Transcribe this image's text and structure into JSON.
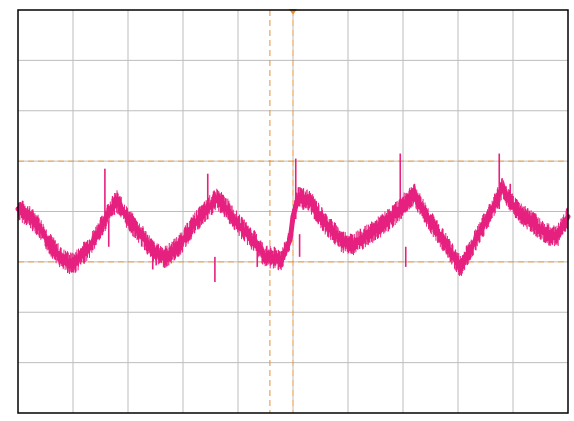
{
  "chart_data": {
    "type": "line",
    "grid": true,
    "grid_divisions": {
      "x": 10,
      "y": 8
    },
    "xlim": [
      0,
      10
    ],
    "ylim": [
      -4,
      4
    ],
    "colors": {
      "trace": "#E6207E",
      "cursor": "#E89030",
      "grid": "#BDBDBD",
      "frame": "#000000",
      "background": "#FFFFFF"
    },
    "cursors": {
      "horizontal": [
        1.0,
        -1.0
      ],
      "vertical": [
        4.58,
        5.0
      ]
    },
    "series": [
      {
        "x": [
          0,
          0.15,
          0.35,
          0.55,
          0.8,
          1.0,
          1.3,
          1.55,
          1.65,
          1.8,
          2.0,
          2.3,
          2.5,
          2.7,
          2.95,
          3.2,
          3.45,
          3.5,
          3.62,
          3.8,
          4.0,
          4.3,
          4.5,
          4.8,
          4.95,
          5.0,
          5.1,
          5.3,
          5.6,
          5.9,
          6.1,
          6.4,
          6.7,
          6.95,
          7.1,
          7.2,
          7.3,
          7.5,
          7.75,
          7.95,
          8.05,
          8.2,
          8.5,
          8.65,
          8.75,
          8.82,
          8.9,
          9.1,
          9.4,
          9.6,
          9.8,
          10.0
        ],
        "y": [
          0.05,
          -0.05,
          -0.25,
          -0.6,
          -0.95,
          -1.05,
          -0.7,
          -0.25,
          0.0,
          0.2,
          -0.15,
          -0.55,
          -0.85,
          -0.9,
          -0.65,
          -0.25,
          0.05,
          0.12,
          0.25,
          0.05,
          -0.25,
          -0.6,
          -0.9,
          -0.95,
          -0.55,
          -0.1,
          0.3,
          0.2,
          -0.25,
          -0.6,
          -0.65,
          -0.45,
          -0.2,
          0.05,
          0.25,
          0.35,
          0.15,
          -0.2,
          -0.6,
          -0.95,
          -1.1,
          -0.8,
          -0.2,
          0.1,
          0.35,
          0.5,
          0.25,
          0.0,
          -0.25,
          -0.45,
          -0.5,
          -0.1
        ],
        "spikes": [
          {
            "x": 1.58,
            "y": 0.85,
            "dy": 1.0
          },
          {
            "x": 1.65,
            "y": -0.2,
            "dy": 0.5
          },
          {
            "x": 3.45,
            "y": 0.75,
            "dy": 0.9
          },
          {
            "x": 3.58,
            "y": -0.9,
            "dy": 0.5
          },
          {
            "x": 5.05,
            "y": 1.05,
            "dy": 1.2
          },
          {
            "x": 5.12,
            "y": -0.45,
            "dy": 0.45
          },
          {
            "x": 6.95,
            "y": 1.15,
            "dy": 1.2
          },
          {
            "x": 7.05,
            "y": -0.7,
            "dy": 0.4
          },
          {
            "x": 8.75,
            "y": 1.15,
            "dy": 1.1
          },
          {
            "x": 8.95,
            "y": 0.55,
            "dy": 0.5
          },
          {
            "x": 4.35,
            "y": -0.7,
            "dy": 0.4
          },
          {
            "x": 2.45,
            "y": -0.8,
            "dy": 0.35
          }
        ]
      }
    ]
  }
}
